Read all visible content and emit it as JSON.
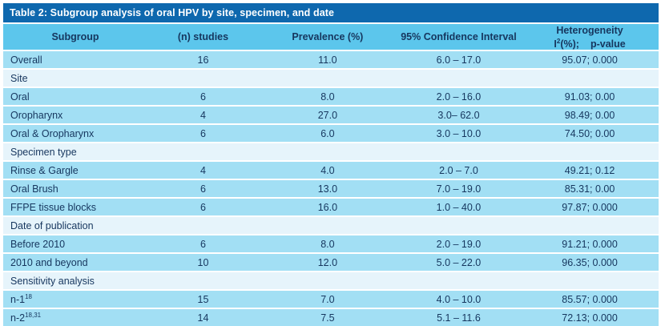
{
  "colors": {
    "title_bar": "#0e68ae",
    "header_row": "#5cc6ec",
    "data_row": "#a2dff4",
    "section_row": "#e6f4fb",
    "text": "#16365e",
    "title_text": "#ffffff",
    "bottom_border": "#49b3dc"
  },
  "table": {
    "title": "Table 2: Subgroup analysis of oral HPV by site, specimen, and date",
    "headers": {
      "subgroup": "Subgroup",
      "n_studies": "(n) studies",
      "prevalence": "Prevalence (%)",
      "ci": "95% Confidence Interval",
      "heterogeneity_line1": "Heterogeneity",
      "heterogeneity_i": "I",
      "heterogeneity_sup": "2",
      "heterogeneity_pct": "(%);",
      "heterogeneity_pvalue": "p-value"
    },
    "rows": [
      {
        "type": "data",
        "label": "Overall",
        "n": "16",
        "prevalence": "11.0",
        "ci": "6.0 – 17.0",
        "het": "95.07; 0.000"
      },
      {
        "type": "section",
        "label": "Site"
      },
      {
        "type": "data",
        "label": "Oral",
        "n": "6",
        "prevalence": "8.0",
        "ci": "2.0 – 16.0",
        "het": "91.03; 0.00"
      },
      {
        "type": "data",
        "label": "Oropharynx",
        "n": "4",
        "prevalence": "27.0",
        "ci": "3.0– 62.0",
        "het": "98.49; 0.00"
      },
      {
        "type": "data",
        "label": "Oral & Oropharynx",
        "n": "6",
        "prevalence": "6.0",
        "ci": "3.0 – 10.0",
        "het": "74.50; 0.00"
      },
      {
        "type": "section",
        "label": "Specimen type"
      },
      {
        "type": "data",
        "label": "Rinse & Gargle",
        "n": "4",
        "prevalence": "4.0",
        "ci": "2.0 – 7.0",
        "het": "49.21; 0.12"
      },
      {
        "type": "data",
        "label": "Oral Brush",
        "n": "6",
        "prevalence": "13.0",
        "ci": "7.0 – 19.0",
        "het": "85.31; 0.00"
      },
      {
        "type": "data",
        "label": "FFPE tissue blocks",
        "n": "6",
        "prevalence": "16.0",
        "ci": "1.0 – 40.0",
        "het": "97.87; 0.000"
      },
      {
        "type": "section",
        "label": "Date of publication"
      },
      {
        "type": "data",
        "label": "Before 2010",
        "n": "6",
        "prevalence": "8.0",
        "ci": "2.0 – 19.0",
        "het": "91.21; 0.000"
      },
      {
        "type": "data",
        "label": "2010 and beyond",
        "n": "10",
        "prevalence": "12.0",
        "ci": "5.0 – 22.0",
        "het": "96.35; 0.000"
      },
      {
        "type": "section",
        "label": "Sensitivity analysis"
      },
      {
        "type": "data",
        "label": "n-1",
        "sup": "18",
        "n": "15",
        "prevalence": "7.0",
        "ci": "4.0 – 10.0",
        "het": "85.57; 0.000"
      },
      {
        "type": "data",
        "label": "n-2",
        "sup": "18,31",
        "n": "14",
        "prevalence": "7.5",
        "ci": "5.1 – 11.6",
        "het": "72.13; 0.000"
      }
    ]
  }
}
